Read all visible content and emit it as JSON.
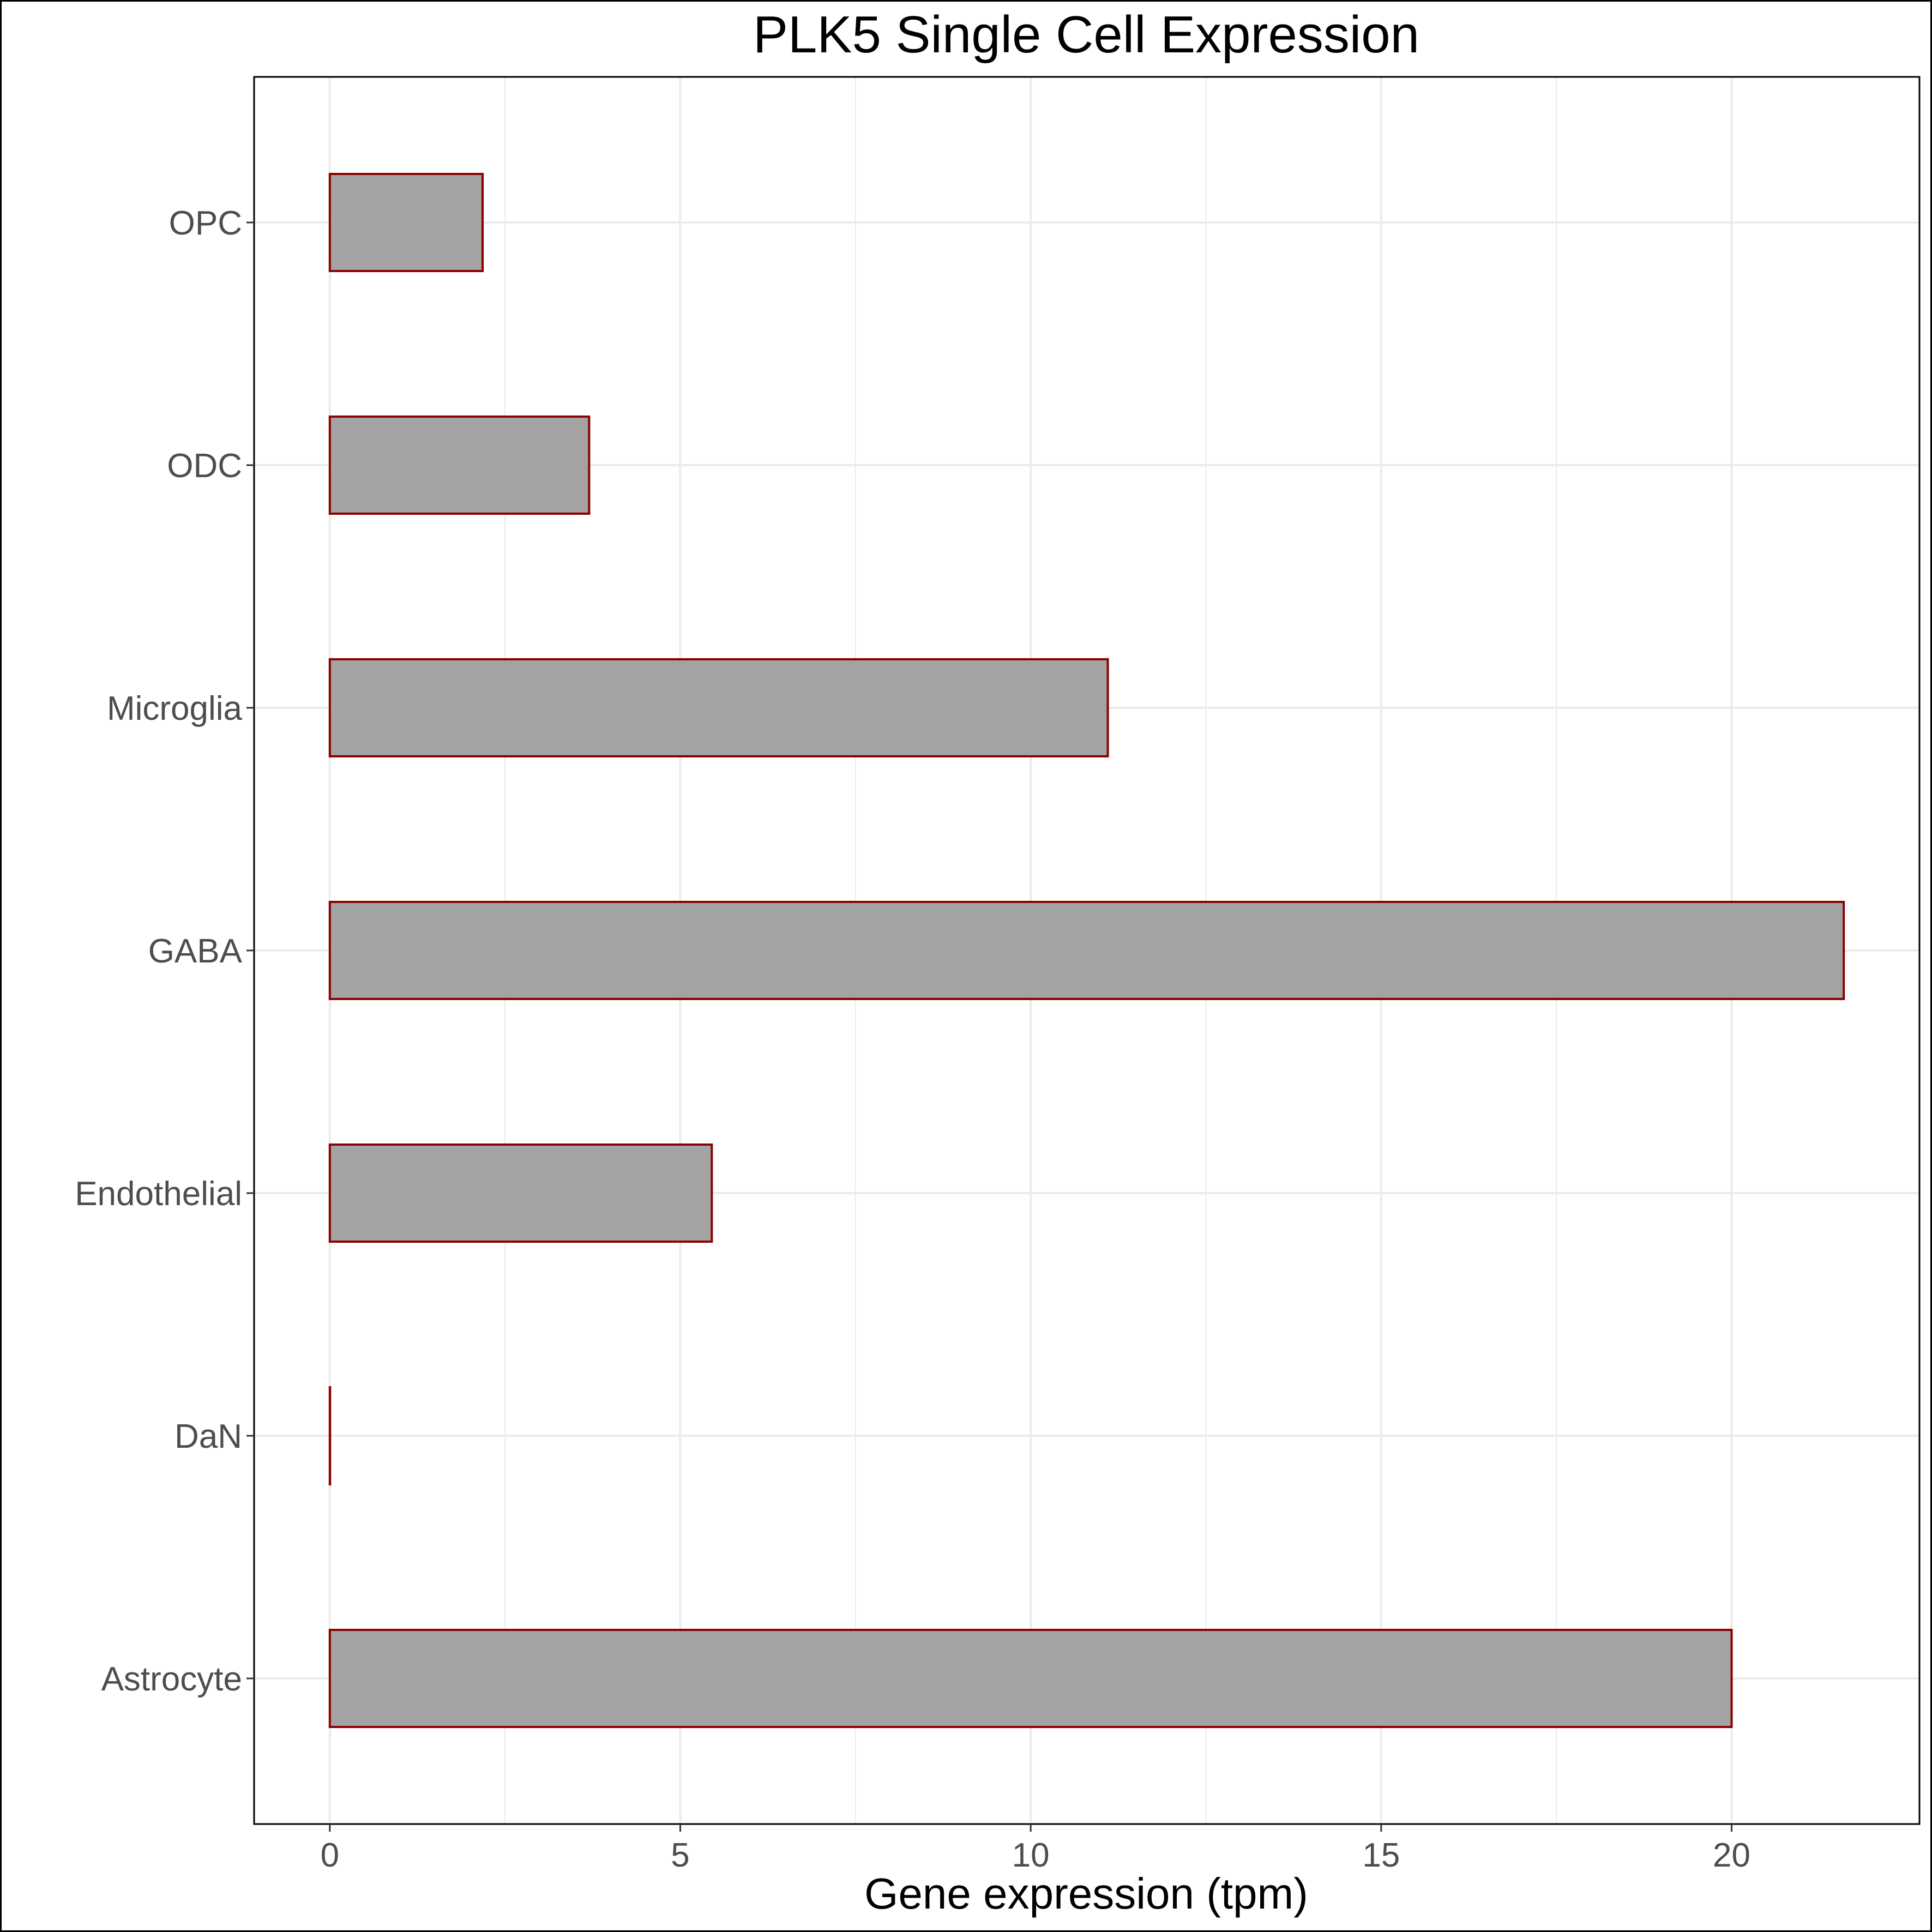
{
  "chart_data": {
    "type": "bar",
    "orientation": "horizontal",
    "title": "PLK5 Single Cell Expression",
    "xlabel": "Gene expression (tpm)",
    "ylabel": "",
    "categories": [
      "Astrocyte",
      "DaN",
      "Endothelial",
      "GABA",
      "Microglia",
      "ODC",
      "OPC"
    ],
    "values": [
      20.0,
      0.0,
      5.45,
      21.6,
      11.1,
      3.7,
      2.18
    ],
    "xlim": [
      -1.08,
      22.68
    ],
    "xticks": [
      0,
      5,
      10,
      15,
      20
    ],
    "xtick_labels": [
      "0",
      "5",
      "10",
      "15",
      "20"
    ],
    "grid": true,
    "legend": "none",
    "colors": {
      "bar_fill": "#a3a3a3",
      "bar_stroke": "#8b0000",
      "grid": "#ebebeb",
      "panel_border": "#000000"
    }
  }
}
